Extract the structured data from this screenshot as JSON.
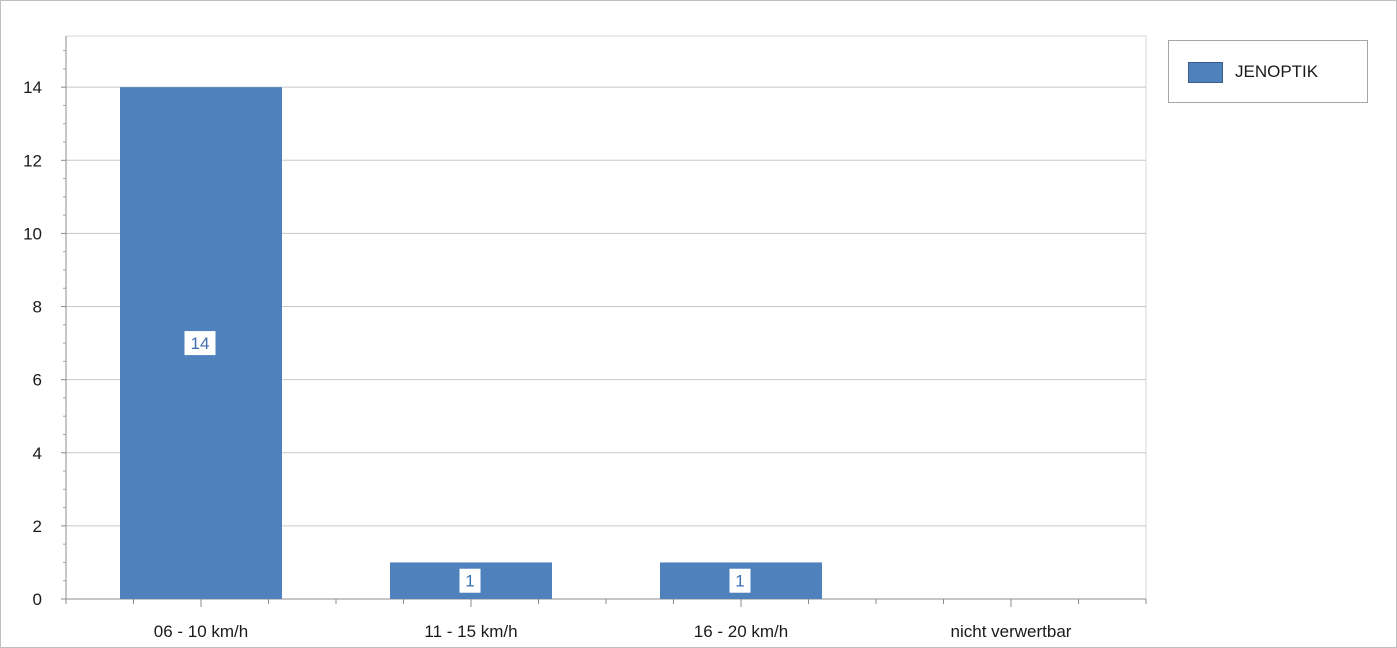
{
  "chart_data": {
    "type": "bar",
    "categories": [
      "06 - 10 km/h",
      "11 - 15 km/h",
      "16 - 20 km/h",
      "nicht verwertbar"
    ],
    "series": [
      {
        "name": "JENOPTIK",
        "values": [
          14,
          1,
          1,
          0
        ],
        "color": "#4f81bd"
      }
    ],
    "data_labels": [
      "14",
      "1",
      "1",
      ""
    ],
    "y_ticks": [
      "0",
      "2",
      "4",
      "6",
      "8",
      "10",
      "12",
      "14"
    ],
    "ylim": [
      0,
      15.4
    ],
    "grid": true,
    "legend_position": "top-right",
    "title": "",
    "xlabel": "",
    "ylabel": ""
  },
  "legend": {
    "label": "JENOPTIK",
    "color": "#4f81bd"
  }
}
